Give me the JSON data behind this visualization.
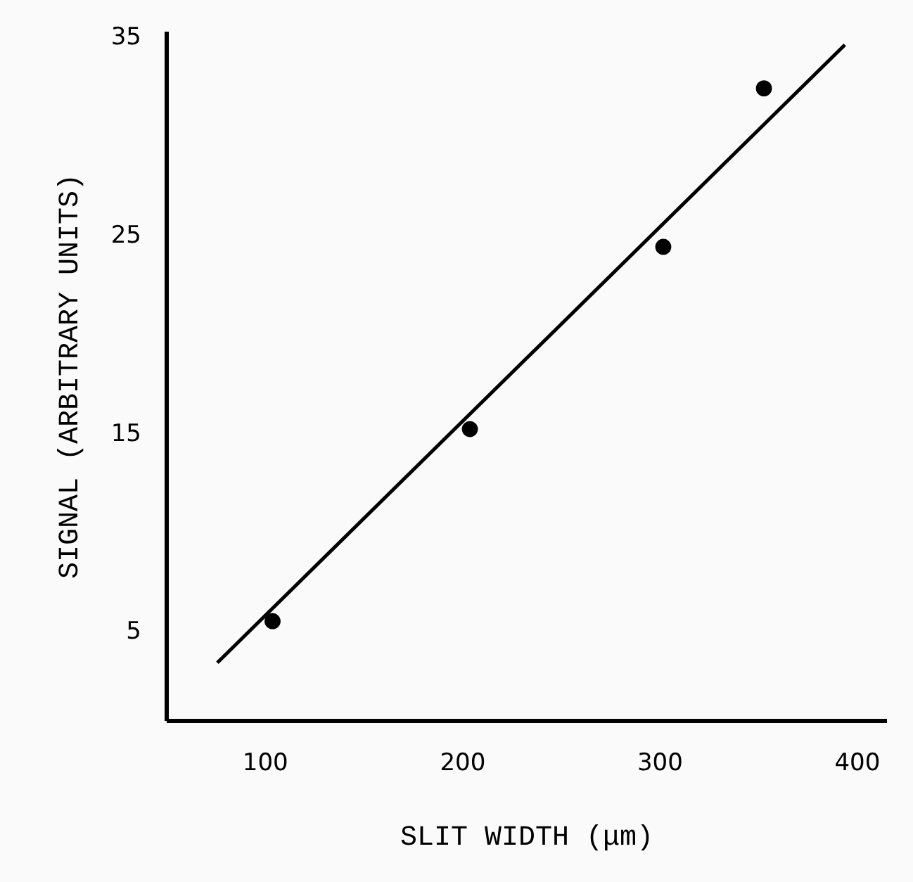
{
  "chart_data": {
    "type": "scatter",
    "xlabel": "SLIT WIDTH (μm)",
    "ylabel": "SIGNAL (ARBITRARY UNITS)",
    "xlim": [
      50,
      415
    ],
    "ylim": [
      0.5,
      35.3
    ],
    "xticks": [
      100,
      200,
      300,
      400
    ],
    "yticks": [
      5,
      15,
      25,
      35
    ],
    "series": [
      {
        "marker": "circle",
        "color": "#000000",
        "x": [
          104,
          204,
          302,
          353
        ],
        "values": [
          5.5,
          15.2,
          24.4,
          32.4
        ]
      },
      {
        "type": "line",
        "color": "#000000",
        "x": [
          76,
          394
        ],
        "values": [
          3.4,
          34.6
        ],
        "line_style": "solid"
      }
    ]
  }
}
